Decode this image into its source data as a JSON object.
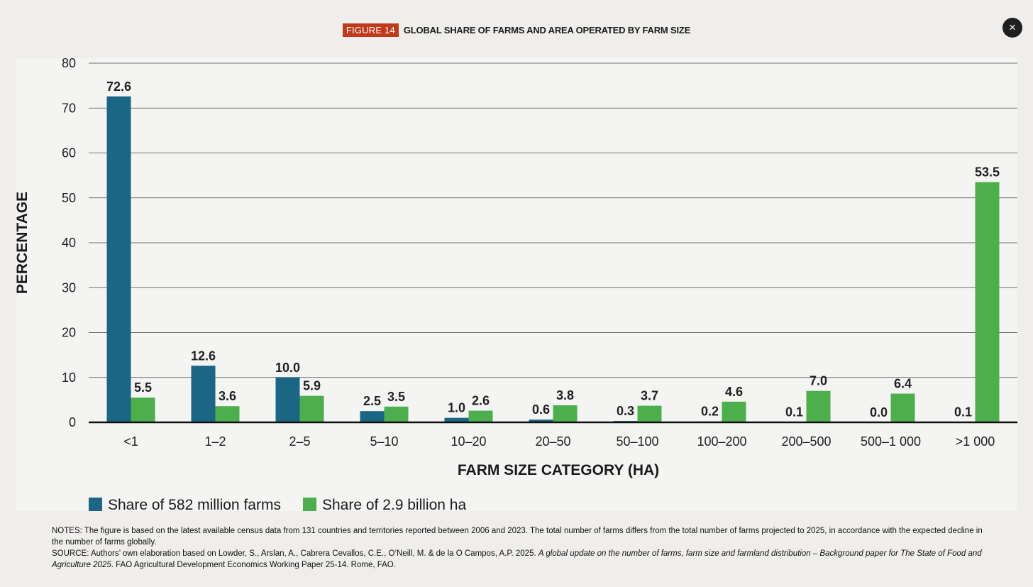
{
  "figure": {
    "badge": "FIGURE 14",
    "title": "GLOBAL SHARE OF FARMS AND AREA OPERATED BY FARM SIZE"
  },
  "close_button": {
    "label": "×",
    "icon": "close-icon"
  },
  "colors": {
    "farms": "#1b6585",
    "area": "#4caf4c",
    "badge": "#c0391b"
  },
  "chart_data": {
    "type": "bar",
    "title": "GLOBAL SHARE OF FARMS AND AREA OPERATED BY FARM SIZE",
    "xlabel": "FARM SIZE CATEGORY (HA)",
    "ylabel": "PERCENTAGE",
    "ylim": [
      0,
      80
    ],
    "yticks": [
      0,
      10,
      20,
      30,
      40,
      50,
      60,
      70,
      80
    ],
    "grid": true,
    "legend_position": "bottom-left",
    "categories": [
      "<1",
      "1–2",
      "2–5",
      "5–10",
      "10–20",
      "20–50",
      "50–100",
      "100–200",
      "200–500",
      "500–1 000",
      ">1 000"
    ],
    "series": [
      {
        "name": "Share of 582 million farms",
        "color": "#1b6585",
        "values": [
          72.6,
          12.6,
          10.0,
          2.5,
          1.0,
          0.6,
          0.3,
          0.2,
          0.1,
          0.0,
          0.1
        ],
        "labels": [
          "72.6",
          "12.6",
          "10.0",
          "2.5",
          "1.0",
          "0.6",
          "0.3",
          "0.2",
          "0.1",
          "0.0",
          "0.1"
        ]
      },
      {
        "name": "Share of 2.9 billion ha",
        "color": "#4caf4c",
        "values": [
          5.5,
          3.6,
          5.9,
          3.5,
          2.6,
          3.8,
          3.7,
          4.6,
          7.0,
          6.4,
          53.5
        ],
        "labels": [
          "5.5",
          "3.6",
          "5.9",
          "3.5",
          "2.6",
          "3.8",
          "3.7",
          "4.6",
          "7.0",
          "6.4",
          "53.5"
        ]
      }
    ]
  },
  "notes": {
    "notes_text": "NOTES: The figure is based on the latest available census data from 131 countries and territories reported between 2006 and 2023. The total number of farms differs from the total number of farms projected to 2025, in accordance with the expected decline in the number of farms globally.",
    "source_prefix": "SOURCE: Authors’ own elaboration based on Lowder, S., Arslan, A., Cabrera Cevallos, C.E., O’Neill, M. & de la O Campos, A.P. 2025. ",
    "source_title": "A global update on the number of farms, farm size and farmland distribution – Background paper for The State of Food and Agriculture 2025",
    "source_suffix": ". FAO Agricultural Development Economics Working Paper 25-14. Rome, FAO."
  }
}
